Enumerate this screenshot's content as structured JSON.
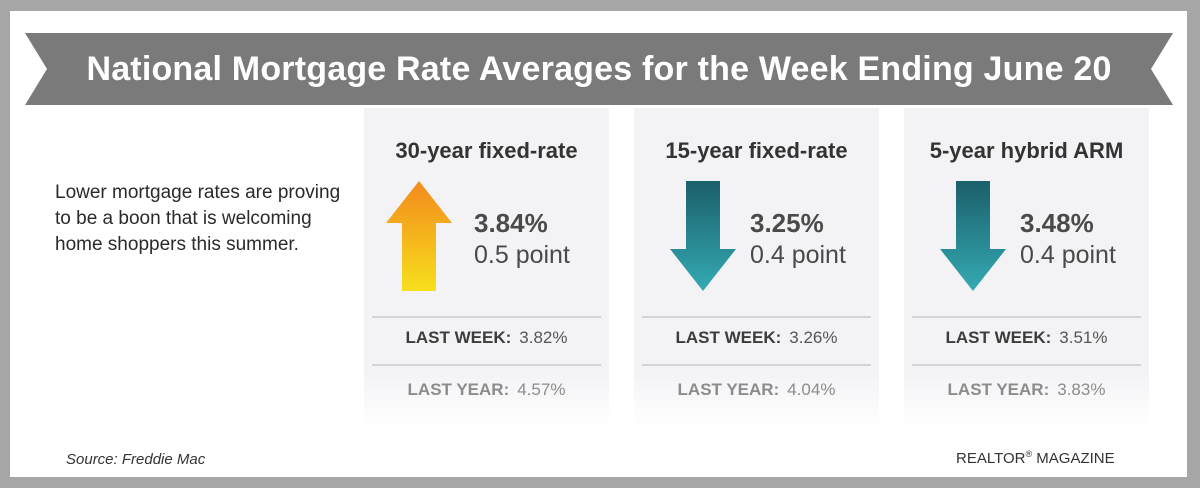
{
  "title": "National Mortgage Rate Averages for the Week Ending June 20",
  "intro": "Lower mortgage rates are proving to be a boon that is welcoming home shoppers this summer.",
  "colors": {
    "banner": "#7a7a7a",
    "up_arrow_top": "#f28a1c",
    "up_arrow_bottom": "#f7df1c",
    "down_arrow_top": "#1b5f6a",
    "down_arrow_bottom": "#34aab3"
  },
  "cards": [
    {
      "title": "30-year fixed-rate",
      "direction": "up",
      "direction_icon": "arrow-up-icon",
      "rate": "3.84%",
      "change": "0.5 point",
      "last_week_label": "LAST WEEK:",
      "last_week_value": "3.82%",
      "last_year_label": "LAST YEAR:",
      "last_year_value": "4.57%"
    },
    {
      "title": "15-year fixed-rate",
      "direction": "down",
      "direction_icon": "arrow-down-icon",
      "rate": "3.25%",
      "change": "0.4 point",
      "last_week_label": "LAST WEEK:",
      "last_week_value": "3.26%",
      "last_year_label": "LAST YEAR:",
      "last_year_value": "4.04%"
    },
    {
      "title": "5-year hybrid ARM",
      "direction": "down",
      "direction_icon": "arrow-down-icon",
      "rate": "3.48%",
      "change": "0.4 point",
      "last_week_label": "LAST WEEK:",
      "last_week_value": "3.51%",
      "last_year_label": "LAST YEAR:",
      "last_year_value": "3.83%"
    }
  ],
  "source": "Source: Freddie Mac",
  "brand": {
    "name": "REALTOR",
    "mark": "®",
    "suffix": " MAGAZINE"
  }
}
